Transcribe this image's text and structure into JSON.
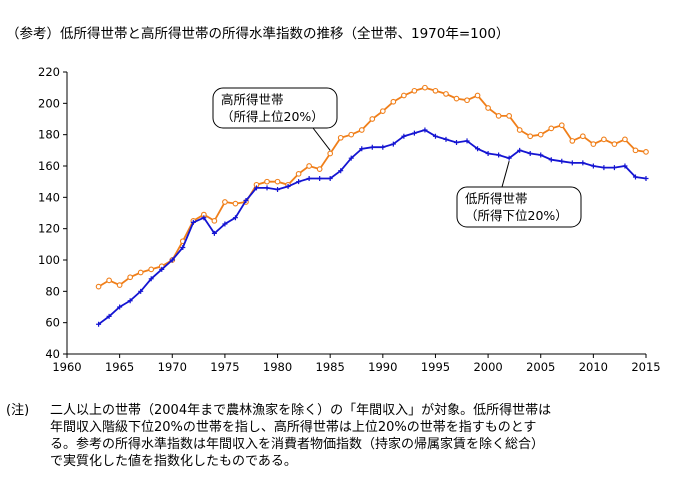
{
  "title": "（参考）低所得世帯と高所得世帯の所得水準指数の推移（全世帯、1970年=100）",
  "note": {
    "lead": "(注)",
    "lines": [
      "二人以上の世帯（2004年まで農林漁家を除く）の「年間収入」が対象。低所得世帯は",
      "年間収入階級下位20%の世帯を指し、高所得世帯は上位20%の世帯を指すものとす",
      "る。参考の所得水準指数は年間収入を消費者物価指数（持家の帰属家賃を除く総合）",
      "で実質化した値を指数化したものである。"
    ]
  },
  "chart_data": {
    "type": "line",
    "xlim": [
      1960,
      2015
    ],
    "ylim": [
      40,
      220
    ],
    "xticks": [
      1960,
      1965,
      1970,
      1975,
      1980,
      1985,
      1990,
      1995,
      2000,
      2005,
      2010,
      2015
    ],
    "yticks": [
      40,
      60,
      80,
      100,
      120,
      140,
      160,
      180,
      200,
      220
    ],
    "grid": false,
    "x": [
      1963,
      1964,
      1965,
      1966,
      1967,
      1968,
      1969,
      1970,
      1971,
      1972,
      1973,
      1974,
      1975,
      1976,
      1977,
      1978,
      1979,
      1980,
      1981,
      1982,
      1983,
      1984,
      1985,
      1986,
      1987,
      1988,
      1989,
      1990,
      1991,
      1992,
      1993,
      1994,
      1995,
      1996,
      1997,
      1998,
      1999,
      2000,
      2001,
      2002,
      2003,
      2004,
      2005,
      2006,
      2007,
      2008,
      2009,
      2010,
      2011,
      2012,
      2013,
      2014,
      2015
    ],
    "series": [
      {
        "name": "高所得世帯",
        "label_lines": [
          "高所得世帯",
          "（所得上位20%）"
        ],
        "color": "#f07f1a",
        "marker": "circle",
        "values": [
          83,
          87,
          84,
          89,
          92,
          94,
          96,
          100,
          112,
          125,
          129,
          125,
          137,
          136,
          137,
          148,
          150,
          150,
          148,
          155,
          160,
          158,
          168,
          178,
          180,
          183,
          190,
          195,
          201,
          205,
          208,
          210,
          208,
          206,
          203,
          202,
          205,
          197,
          192,
          192,
          183,
          179,
          180,
          184,
          186,
          176,
          179,
          174,
          177,
          174,
          177,
          170,
          169
        ]
      },
      {
        "name": "低所得世帯",
        "label_lines": [
          "低所得世帯",
          "（所得下位20%）"
        ],
        "color": "#1414d2",
        "marker": "plus",
        "values": [
          59,
          64,
          70,
          74,
          80,
          88,
          94,
          100,
          108,
          124,
          127,
          117,
          123,
          127,
          138,
          146,
          146,
          145,
          147,
          150,
          152,
          152,
          152,
          157,
          165,
          171,
          172,
          172,
          174,
          179,
          181,
          183,
          179,
          177,
          175,
          176,
          171,
          168,
          167,
          165,
          170,
          168,
          167,
          164,
          163,
          162,
          162,
          160,
          159,
          159,
          160,
          153,
          152
        ]
      }
    ]
  }
}
